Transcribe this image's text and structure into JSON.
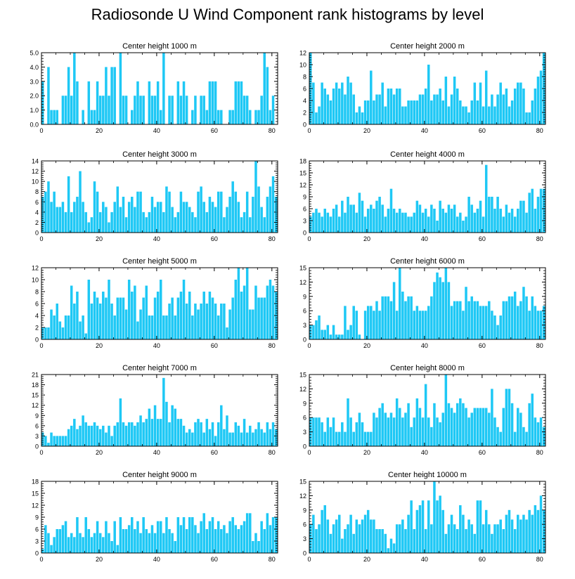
{
  "title": "Radiosonde U Wind Component rank histograms by level",
  "bar_color": "#1ec8f5",
  "chart_data": [
    {
      "type": "bar",
      "title": "Center height 1000 m",
      "xlim": [
        0,
        82
      ],
      "ylim": [
        0,
        5
      ],
      "xticks": [
        0,
        20,
        40,
        60,
        80
      ],
      "yticks": [
        "0.0",
        "1.0",
        "2.0",
        "3.0",
        "4.0",
        "5.0"
      ],
      "values": [
        3,
        0,
        4,
        1,
        1,
        1,
        0,
        2,
        2,
        4,
        2,
        5,
        3,
        0,
        1,
        0,
        3,
        1,
        1,
        3,
        2,
        2,
        4,
        2,
        4,
        4,
        0,
        5,
        2,
        2,
        0,
        1,
        2,
        3,
        2,
        2,
        0,
        3,
        2,
        2,
        3,
        1,
        5,
        0,
        2,
        2,
        0,
        3,
        2,
        3,
        2,
        0,
        1,
        2,
        0,
        2,
        2,
        1,
        3,
        3,
        3,
        1,
        1,
        0,
        0,
        1,
        1,
        3,
        3,
        3,
        2,
        2,
        1,
        0,
        1,
        1,
        2,
        5,
        4,
        1,
        2,
        0
      ]
    },
    {
      "type": "bar",
      "title": "Center height 2000 m",
      "xlim": [
        0,
        82
      ],
      "ylim": [
        0,
        12
      ],
      "xticks": [
        0,
        20,
        40,
        60,
        80
      ],
      "yticks": [
        "0",
        "2",
        "4",
        "6",
        "8",
        "10",
        "12"
      ],
      "values": [
        12,
        7,
        2,
        3,
        7,
        6,
        5,
        4,
        6,
        7,
        6,
        7,
        5,
        8,
        7,
        5,
        2,
        3,
        2,
        4,
        4,
        9,
        4,
        5,
        5,
        7,
        3,
        6,
        6,
        5,
        6,
        6,
        3,
        3,
        4,
        4,
        4,
        4,
        5,
        5,
        6,
        10,
        4,
        5,
        5,
        6,
        4,
        8,
        3,
        5,
        8,
        6,
        4,
        3,
        3,
        2,
        4,
        7,
        4,
        7,
        3,
        9,
        3,
        5,
        3,
        5,
        7,
        5,
        6,
        3,
        4,
        6,
        7,
        7,
        6,
        2,
        2,
        4,
        6,
        8,
        9,
        12
      ]
    },
    {
      "type": "bar",
      "title": "Center height 3000 m",
      "xlim": [
        0,
        82
      ],
      "ylim": [
        0,
        14
      ],
      "xticks": [
        0,
        20,
        40,
        60,
        80
      ],
      "yticks": [
        "0",
        "2",
        "4",
        "6",
        "8",
        "10",
        "12",
        "14"
      ],
      "values": [
        7,
        8,
        10,
        6,
        8,
        5,
        5,
        6,
        4,
        11,
        4,
        6,
        7,
        12,
        6,
        4,
        2,
        3,
        10,
        8,
        4,
        6,
        5,
        2,
        4,
        6,
        9,
        5,
        7,
        3,
        6,
        7,
        5,
        8,
        8,
        4,
        3,
        4,
        7,
        5,
        6,
        6,
        4,
        9,
        8,
        5,
        3,
        4,
        8,
        6,
        6,
        5,
        4,
        3,
        8,
        9,
        6,
        4,
        7,
        6,
        5,
        8,
        8,
        3,
        5,
        7,
        10,
        8,
        6,
        3,
        4,
        8,
        3,
        7,
        14,
        9,
        5,
        3,
        7,
        9,
        11,
        7
      ]
    },
    {
      "type": "bar",
      "title": "Center height 4000 m",
      "xlim": [
        0,
        82
      ],
      "ylim": [
        0,
        18
      ],
      "xticks": [
        0,
        20,
        40,
        60,
        80
      ],
      "yticks": [
        "0",
        "3",
        "6",
        "9",
        "12",
        "15",
        "18"
      ],
      "values": [
        4,
        5,
        6,
        5,
        4,
        6,
        5,
        4,
        6,
        7,
        4,
        8,
        5,
        9,
        7,
        7,
        5,
        10,
        8,
        4,
        6,
        7,
        6,
        8,
        9,
        7,
        4,
        6,
        11,
        6,
        5,
        6,
        5,
        5,
        4,
        4,
        5,
        8,
        7,
        5,
        6,
        4,
        7,
        6,
        3,
        8,
        6,
        5,
        7,
        6,
        7,
        4,
        5,
        3,
        4,
        9,
        7,
        5,
        6,
        8,
        4,
        17,
        9,
        9,
        6,
        9,
        6,
        4,
        7,
        5,
        6,
        4,
        6,
        8,
        8,
        5,
        10,
        11,
        6,
        9,
        11,
        11
      ]
    },
    {
      "type": "bar",
      "title": "Center height 5000 m",
      "xlim": [
        0,
        82
      ],
      "ylim": [
        0,
        12
      ],
      "xticks": [
        0,
        20,
        40,
        60,
        80
      ],
      "yticks": [
        "0",
        "2",
        "4",
        "6",
        "8",
        "10",
        "12"
      ],
      "values": [
        2,
        2,
        2,
        5,
        4,
        6,
        3,
        2,
        4,
        4,
        9,
        6,
        8,
        3,
        4,
        1,
        10,
        6,
        8,
        7,
        6,
        8,
        7,
        10,
        6,
        4,
        7,
        7,
        7,
        5,
        10,
        8,
        9,
        3,
        5,
        7,
        9,
        4,
        4,
        7,
        8,
        10,
        4,
        4,
        6,
        7,
        4,
        7,
        8,
        10,
        6,
        8,
        4,
        6,
        5,
        6,
        8,
        6,
        8,
        7,
        6,
        4,
        6,
        6,
        2,
        5,
        7,
        10,
        12,
        8,
        9,
        12,
        5,
        5,
        9,
        7,
        7,
        7,
        9,
        10,
        9,
        8
      ]
    },
    {
      "type": "bar",
      "title": "Center height 6000 m",
      "xlim": [
        0,
        82
      ],
      "ylim": [
        0,
        15
      ],
      "xticks": [
        0,
        20,
        40,
        60,
        80
      ],
      "yticks": [
        "0",
        "3",
        "6",
        "9",
        "12",
        "15"
      ],
      "values": [
        3,
        3,
        4,
        5,
        2,
        2,
        3,
        1,
        3,
        1,
        1,
        1,
        7,
        2,
        3,
        7,
        6,
        1,
        0,
        6,
        7,
        7,
        6,
        8,
        6,
        9,
        9,
        9,
        8,
        12,
        6,
        15,
        10,
        8,
        9,
        9,
        6,
        7,
        6,
        6,
        6,
        7,
        9,
        12,
        14,
        13,
        12,
        15,
        12,
        7,
        8,
        8,
        8,
        6,
        11,
        8,
        9,
        8,
        8,
        7,
        7,
        7,
        8,
        6,
        5,
        3,
        5,
        8,
        8,
        9,
        9,
        10,
        7,
        8,
        11,
        9,
        6,
        9,
        7,
        6,
        6,
        7
      ]
    },
    {
      "type": "bar",
      "title": "Center height 7000 m",
      "xlim": [
        0,
        82
      ],
      "ylim": [
        0,
        21
      ],
      "xticks": [
        0,
        20,
        40,
        60,
        80
      ],
      "yticks": [
        "0",
        "3",
        "6",
        "9",
        "12",
        "15",
        "18",
        "21"
      ],
      "values": [
        4,
        3,
        1,
        4,
        3,
        3,
        3,
        3,
        3,
        5,
        6,
        8,
        5,
        6,
        9,
        7,
        6,
        6,
        7,
        6,
        5,
        6,
        4,
        6,
        3,
        6,
        7,
        14,
        7,
        6,
        7,
        7,
        6,
        7,
        9,
        7,
        8,
        11,
        8,
        12,
        8,
        8,
        20,
        13,
        7,
        12,
        11,
        8,
        8,
        6,
        4,
        5,
        4,
        7,
        8,
        7,
        4,
        8,
        5,
        7,
        3,
        7,
        12,
        5,
        9,
        4,
        4,
        7,
        6,
        4,
        8,
        4,
        6,
        4,
        5,
        7,
        5,
        4,
        7,
        5,
        7,
        5
      ]
    },
    {
      "type": "bar",
      "title": "Center height 8000 m",
      "xlim": [
        0,
        82
      ],
      "ylim": [
        0,
        15
      ],
      "xticks": [
        0,
        20,
        40,
        60,
        80
      ],
      "yticks": [
        "0",
        "3",
        "6",
        "9",
        "12",
        "15"
      ],
      "values": [
        6,
        6,
        6,
        6,
        5,
        3,
        6,
        4,
        6,
        3,
        3,
        5,
        3,
        10,
        6,
        3,
        5,
        7,
        5,
        3,
        3,
        3,
        7,
        6,
        8,
        9,
        7,
        6,
        7,
        6,
        10,
        8,
        6,
        7,
        9,
        4,
        6,
        10,
        8,
        6,
        13,
        6,
        4,
        9,
        6,
        5,
        7,
        15,
        9,
        8,
        7,
        9,
        10,
        9,
        8,
        6,
        7,
        8,
        8,
        8,
        8,
        8,
        7,
        12,
        6,
        4,
        3,
        8,
        12,
        12,
        9,
        3,
        8,
        7,
        4,
        3,
        9,
        11,
        6,
        5,
        6,
        4
      ]
    },
    {
      "type": "bar",
      "title": "Center height 9000 m",
      "xlim": [
        0,
        82
      ],
      "ylim": [
        0,
        18
      ],
      "xticks": [
        0,
        20,
        40,
        60,
        80
      ],
      "yticks": [
        "0",
        "3",
        "6",
        "9",
        "12",
        "15",
        "18"
      ],
      "values": [
        1,
        7,
        5,
        2,
        4,
        6,
        6,
        7,
        8,
        4,
        5,
        4,
        9,
        5,
        4,
        9,
        6,
        4,
        5,
        8,
        5,
        4,
        8,
        5,
        3,
        8,
        2,
        9,
        6,
        6,
        7,
        9,
        6,
        8,
        5,
        9,
        6,
        5,
        7,
        5,
        8,
        8,
        5,
        9,
        6,
        5,
        3,
        9,
        7,
        9,
        6,
        9,
        9,
        7,
        5,
        8,
        10,
        6,
        8,
        9,
        6,
        8,
        6,
        7,
        5,
        8,
        9,
        7,
        6,
        7,
        8,
        10,
        10,
        3,
        5,
        3,
        8,
        6,
        10,
        7,
        9,
        9
      ]
    },
    {
      "type": "bar",
      "title": "Center height 10000 m",
      "xlim": [
        0,
        82
      ],
      "ylim": [
        0,
        15
      ],
      "xticks": [
        0,
        20,
        40,
        60,
        80
      ],
      "yticks": [
        "0",
        "3",
        "6",
        "9",
        "12",
        "15"
      ],
      "values": [
        6,
        8,
        5,
        6,
        9,
        10,
        7,
        4,
        6,
        7,
        8,
        3,
        5,
        6,
        8,
        4,
        7,
        6,
        7,
        8,
        9,
        7,
        7,
        5,
        5,
        5,
        4,
        1,
        3,
        2,
        6,
        6,
        7,
        5,
        8,
        11,
        5,
        9,
        10,
        11,
        5,
        11,
        6,
        15,
        11,
        12,
        9,
        4,
        6,
        8,
        6,
        5,
        10,
        8,
        5,
        7,
        6,
        4,
        11,
        11,
        6,
        9,
        6,
        4,
        6,
        6,
        7,
        5,
        8,
        9,
        7,
        5,
        8,
        7,
        8,
        7,
        9,
        8,
        10,
        9,
        12,
        9
      ]
    }
  ]
}
